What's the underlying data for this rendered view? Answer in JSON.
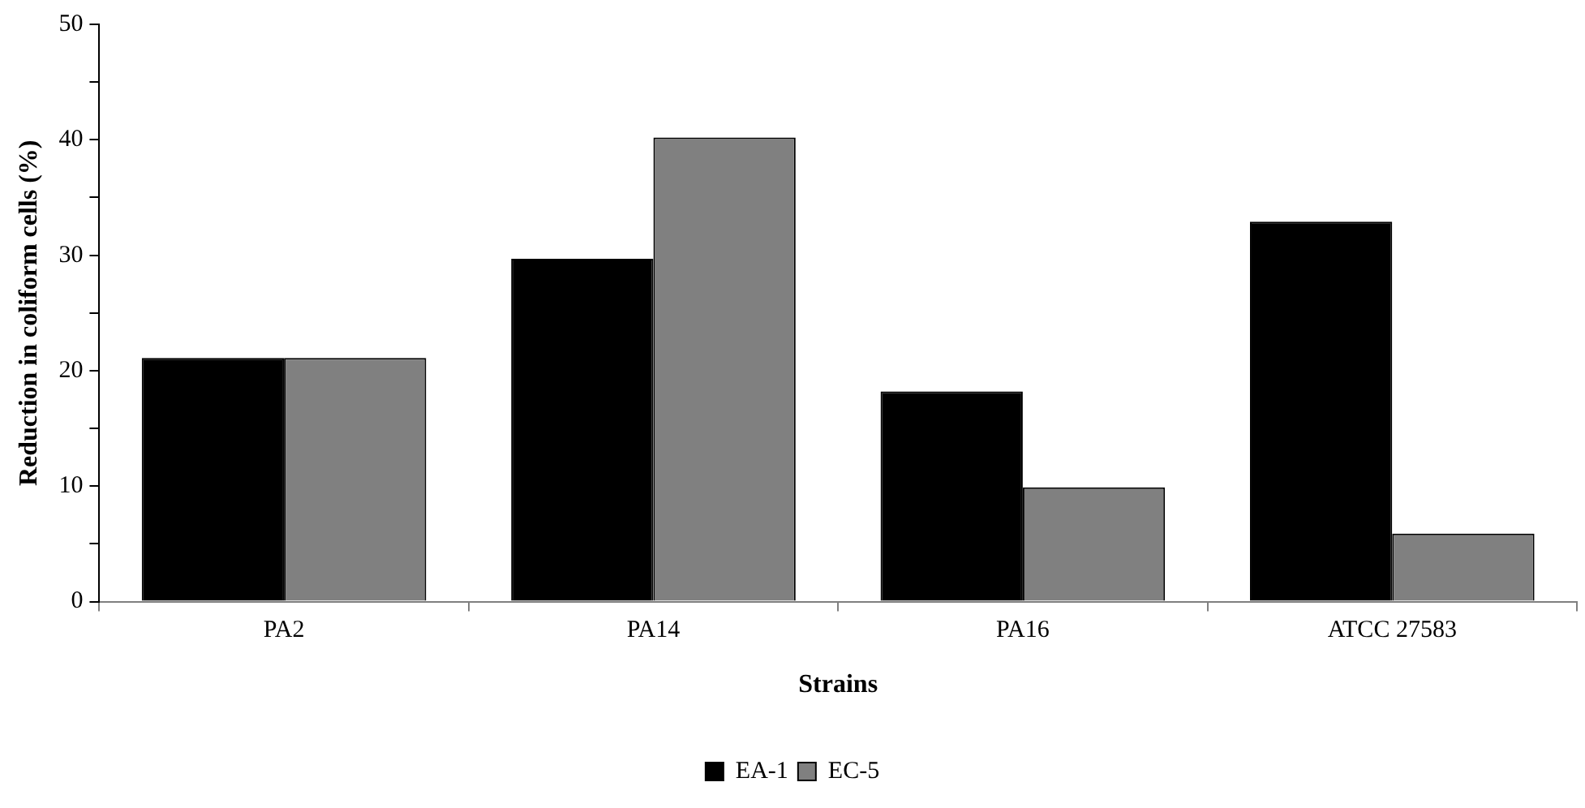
{
  "chart_data": {
    "type": "bar",
    "xlabel": "Strains",
    "ylabel": "Reduction in coliform cells (%)",
    "categories": [
      "PA2",
      "PA14",
      "PA16",
      "ATCC 27583"
    ],
    "series": [
      {
        "name": "EA-1",
        "color": "#000000",
        "values": [
          21.1,
          29.7,
          18.2,
          32.9
        ]
      },
      {
        "name": "EC-5",
        "color": "#808080",
        "values": [
          21.1,
          40.2,
          9.9,
          5.9
        ]
      }
    ],
    "ylim": [
      0,
      50
    ],
    "yticks": [
      0,
      {
        "value": 5,
        "label": null
      },
      10,
      {
        "value": 15,
        "label": null
      },
      20,
      {
        "value": 25,
        "label": null
      },
      30,
      {
        "value": 35,
        "label": null
      },
      40,
      {
        "value": 45,
        "label": null
      },
      50
    ],
    "grid": false,
    "legend": "bottom"
  }
}
